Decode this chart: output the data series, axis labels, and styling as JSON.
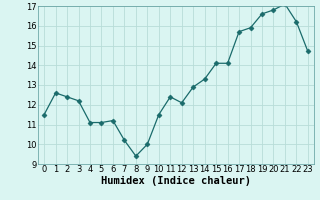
{
  "x": [
    0,
    1,
    2,
    3,
    4,
    5,
    6,
    7,
    8,
    9,
    10,
    11,
    12,
    13,
    14,
    15,
    16,
    17,
    18,
    19,
    20,
    21,
    22,
    23
  ],
  "y": [
    11.5,
    12.6,
    12.4,
    12.2,
    11.1,
    11.1,
    11.2,
    10.2,
    9.4,
    10.0,
    11.5,
    12.4,
    12.1,
    12.9,
    13.3,
    14.1,
    14.1,
    15.7,
    15.9,
    16.6,
    16.8,
    17.1,
    16.2,
    14.7
  ],
  "line_color": "#1a6b6b",
  "marker": "D",
  "marker_size": 2.5,
  "bg_color": "#daf5f2",
  "grid_color": "#b8ddd8",
  "xlabel": "Humidex (Indice chaleur)",
  "ylim": [
    9,
    17
  ],
  "xlim": [
    -0.5,
    23.5
  ],
  "yticks": [
    9,
    10,
    11,
    12,
    13,
    14,
    15,
    16,
    17
  ],
  "xticks": [
    0,
    1,
    2,
    3,
    4,
    5,
    6,
    7,
    8,
    9,
    10,
    11,
    12,
    13,
    14,
    15,
    16,
    17,
    18,
    19,
    20,
    21,
    22,
    23
  ],
  "tick_fontsize": 6,
  "xlabel_fontsize": 7.5
}
